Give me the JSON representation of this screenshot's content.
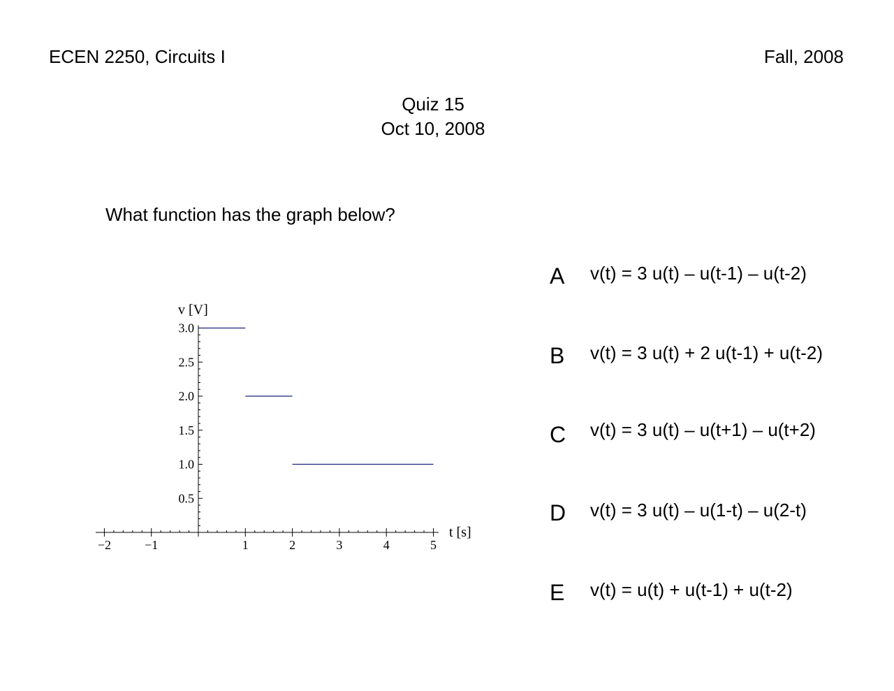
{
  "header": {
    "course": "ECEN 2250, Circuits I",
    "term": "Fall, 2008"
  },
  "title": {
    "quiz": "Quiz 15",
    "date": "Oct 10, 2008"
  },
  "question": "What function has the graph below?",
  "choices": [
    {
      "letter": "A",
      "text": "v(t) = 3 u(t) – u(t-1) – u(t-2)"
    },
    {
      "letter": "B",
      "text": "v(t) = 3 u(t) + 2 u(t-1) + u(t-2)"
    },
    {
      "letter": "C",
      "text": "v(t) = 3 u(t) – u(t+1) – u(t+2)"
    },
    {
      "letter": "D",
      "text": "v(t) = 3 u(t) – u(1-t) – u(2-t)"
    },
    {
      "letter": "E",
      "text": "v(t) = u(t) + u(t-1) + u(t-2)"
    }
  ],
  "chart_data": {
    "type": "line",
    "xlabel": "t [s]",
    "ylabel": "v [V]",
    "xlim": [
      -2,
      5
    ],
    "ylim": [
      0,
      3
    ],
    "x_ticks": [
      -2,
      -1,
      1,
      2,
      3,
      4,
      5
    ],
    "x_tick_labels": [
      "−2",
      "−1",
      "1",
      "2",
      "3",
      "4",
      "5"
    ],
    "y_ticks": [
      0.5,
      1.0,
      1.5,
      2.0,
      2.5,
      3.0
    ],
    "y_tick_labels": [
      "0.5",
      "1.0",
      "1.5",
      "2.0",
      "2.5",
      "3.0"
    ],
    "segments": [
      {
        "x": [
          0,
          1
        ],
        "y": [
          3,
          3
        ]
      },
      {
        "x": [
          1,
          2
        ],
        "y": [
          2,
          2
        ]
      },
      {
        "x": [
          2,
          5
        ],
        "y": [
          1,
          1
        ]
      }
    ],
    "line_color": "#1a237e"
  }
}
